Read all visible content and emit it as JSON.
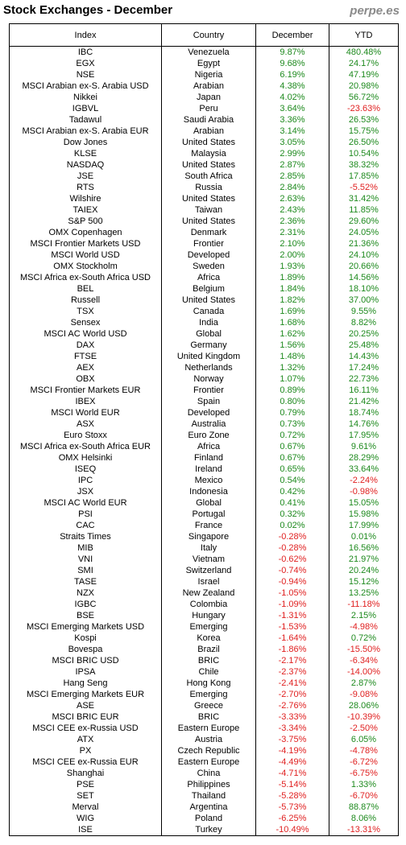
{
  "header": {
    "title": "Stock Exchanges - December",
    "site": "perpe.es"
  },
  "table": {
    "columns": [
      "Index",
      "Country",
      "December",
      "YTD"
    ],
    "rows": [
      [
        "IBC",
        "Venezuela",
        "9.87%",
        "480.48%"
      ],
      [
        "EGX",
        "Egypt",
        "9.68%",
        "24.17%"
      ],
      [
        "NSE",
        "Nigeria",
        "6.19%",
        "47.19%"
      ],
      [
        "MSCI Arabian ex-S. Arabia USD",
        "Arabian",
        "4.38%",
        "20.98%"
      ],
      [
        "Nikkei",
        "Japan",
        "4.02%",
        "56.72%"
      ],
      [
        "IGBVL",
        "Peru",
        "3.64%",
        "-23.63%"
      ],
      [
        "Tadawul",
        "Saudi Arabia",
        "3.36%",
        "26.53%"
      ],
      [
        "MSCI Arabian ex-S. Arabia EUR",
        "Arabian",
        "3.14%",
        "15.75%"
      ],
      [
        "Dow Jones",
        "United States",
        "3.05%",
        "26.50%"
      ],
      [
        "KLSE",
        "Malaysia",
        "2.99%",
        "10.54%"
      ],
      [
        "NASDAQ",
        "United States",
        "2.87%",
        "38.32%"
      ],
      [
        "JSE",
        "South Africa",
        "2.85%",
        "17.85%"
      ],
      [
        "RTS",
        "Russia",
        "2.84%",
        "-5.52%"
      ],
      [
        "Wilshire",
        "United States",
        "2.63%",
        "31.42%"
      ],
      [
        "TAIEX",
        "Taiwan",
        "2.43%",
        "11.85%"
      ],
      [
        "S&P 500",
        "United States",
        "2.36%",
        "29.60%"
      ],
      [
        "OMX Copenhagen",
        "Denmark",
        "2.31%",
        "24.05%"
      ],
      [
        "MSCI Frontier Markets USD",
        "Frontier",
        "2.10%",
        "21.36%"
      ],
      [
        "MSCI World USD",
        "Developed",
        "2.00%",
        "24.10%"
      ],
      [
        "OMX Stockholm",
        "Sweden",
        "1.93%",
        "20.66%"
      ],
      [
        "MSCI Africa ex-South Africa USD",
        "Africa",
        "1.89%",
        "14.56%"
      ],
      [
        "BEL",
        "Belgium",
        "1.84%",
        "18.10%"
      ],
      [
        "Russell",
        "United States",
        "1.82%",
        "37.00%"
      ],
      [
        "TSX",
        "Canada",
        "1.69%",
        "9.55%"
      ],
      [
        "Sensex",
        "India",
        "1.68%",
        "8.82%"
      ],
      [
        "MSCI AC World USD",
        "Global",
        "1.62%",
        "20.25%"
      ],
      [
        "DAX",
        "Germany",
        "1.56%",
        "25.48%"
      ],
      [
        "FTSE",
        "United Kingdom",
        "1.48%",
        "14.43%"
      ],
      [
        "AEX",
        "Netherlands",
        "1.32%",
        "17.24%"
      ],
      [
        "OBX",
        "Norway",
        "1.07%",
        "22.73%"
      ],
      [
        "MSCI Frontier Markets EUR",
        "Frontier",
        "0.89%",
        "16.11%"
      ],
      [
        "IBEX",
        "Spain",
        "0.80%",
        "21.42%"
      ],
      [
        "MSCI World EUR",
        "Developed",
        "0.79%",
        "18.74%"
      ],
      [
        "ASX",
        "Australia",
        "0.73%",
        "14.76%"
      ],
      [
        "Euro Stoxx",
        "Euro Zone",
        "0.72%",
        "17.95%"
      ],
      [
        "MSCI Africa ex-South Africa EUR",
        "Africa",
        "0.67%",
        "9.61%"
      ],
      [
        "OMX Helsinki",
        "Finland",
        "0.67%",
        "28.29%"
      ],
      [
        "ISEQ",
        "Ireland",
        "0.65%",
        "33.64%"
      ],
      [
        "IPC",
        "Mexico",
        "0.54%",
        "-2.24%"
      ],
      [
        "JSX",
        "Indonesia",
        "0.42%",
        "-0.98%"
      ],
      [
        "MSCI AC World EUR",
        "Global",
        "0.41%",
        "15.05%"
      ],
      [
        "PSI",
        "Portugal",
        "0.32%",
        "15.98%"
      ],
      [
        "CAC",
        "France",
        "0.02%",
        "17.99%"
      ],
      [
        "Straits Times",
        "Singapore",
        "-0.28%",
        "0.01%"
      ],
      [
        "MIB",
        "Italy",
        "-0.28%",
        "16.56%"
      ],
      [
        "VNI",
        "Vietnam",
        "-0.62%",
        "21.97%"
      ],
      [
        "SMI",
        "Switzerland",
        "-0.74%",
        "20.24%"
      ],
      [
        "TASE",
        "Israel",
        "-0.94%",
        "15.12%"
      ],
      [
        "NZX",
        "New Zealand",
        "-1.05%",
        "13.25%"
      ],
      [
        "IGBC",
        "Colombia",
        "-1.09%",
        "-11.18%"
      ],
      [
        "BSE",
        "Hungary",
        "-1.31%",
        "2.15%"
      ],
      [
        "MSCI Emerging Markets USD",
        "Emerging",
        "-1.53%",
        "-4.98%"
      ],
      [
        "Kospi",
        "Korea",
        "-1.64%",
        "0.72%"
      ],
      [
        "Bovespa",
        "Brazil",
        "-1.86%",
        "-15.50%"
      ],
      [
        "MSCI BRIC USD",
        "BRIC",
        "-2.17%",
        "-6.34%"
      ],
      [
        "IPSA",
        "Chile",
        "-2.37%",
        "-14.00%"
      ],
      [
        "Hang Seng",
        "Hong Kong",
        "-2.41%",
        "2.87%"
      ],
      [
        "MSCI Emerging Markets EUR",
        "Emerging",
        "-2.70%",
        "-9.08%"
      ],
      [
        "ASE",
        "Greece",
        "-2.76%",
        "28.06%"
      ],
      [
        "MSCI BRIC EUR",
        "BRIC",
        "-3.33%",
        "-10.39%"
      ],
      [
        "MSCI CEE ex-Russia USD",
        "Eastern Europe",
        "-3.34%",
        "-2.50%"
      ],
      [
        "ATX",
        "Austria",
        "-3.75%",
        "6.05%"
      ],
      [
        "PX",
        "Czech Republic",
        "-4.19%",
        "-4.78%"
      ],
      [
        "MSCI CEE ex-Russia EUR",
        "Eastern Europe",
        "-4.49%",
        "-6.72%"
      ],
      [
        "Shanghai",
        "China",
        "-4.71%",
        "-6.75%"
      ],
      [
        "PSE",
        "Philippines",
        "-5.14%",
        "1.33%"
      ],
      [
        "SET",
        "Thailand",
        "-5.28%",
        "-6.70%"
      ],
      [
        "Merval",
        "Argentina",
        "-5.73%",
        "88.87%"
      ],
      [
        "WIG",
        "Poland",
        "-6.25%",
        "8.06%"
      ],
      [
        "ISE",
        "Turkey",
        "-10.49%",
        "-13.31%"
      ]
    ]
  },
  "colors": {
    "positive": "#1e8a1e",
    "negative": "#e02020"
  }
}
